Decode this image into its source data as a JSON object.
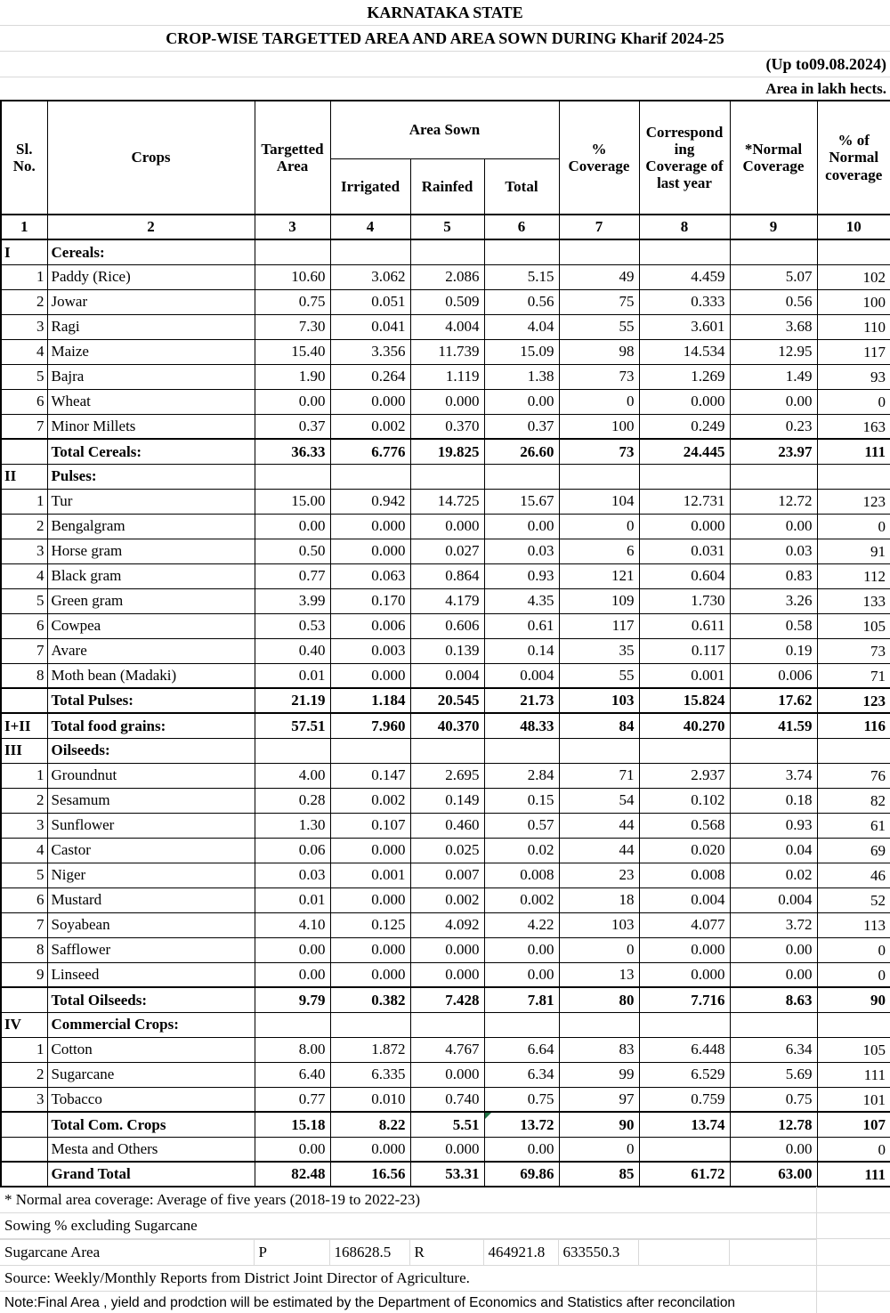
{
  "titles": {
    "state": "KARNATAKA STATE",
    "report": "CROP-WISE TARGETTED AREA AND AREA SOWN DURING Kharif 2024-25",
    "as_on": "(Up to09.08.2024)",
    "unit": "Area in lakh hects."
  },
  "table": {
    "header": {
      "sl": "Sl.\nNo.",
      "crops": "Crops",
      "targetted": "Targetted\nArea",
      "area_sown": "Area Sown",
      "irrigated": "Irrigated",
      "rainfed": "Rainfed",
      "total": "Total",
      "pct_coverage": "%\nCoverage",
      "corresponding": "Correspond\ning\nCoverage of\nlast year",
      "normal": "*Normal\nCoverage",
      "pct_normal": "% of\nNormal\ncoverage"
    },
    "col_numbers": [
      "1",
      "2",
      "3",
      "4",
      "5",
      "6",
      "7",
      "8",
      "9",
      "10"
    ],
    "rows": [
      {
        "type": "section",
        "sl": "I",
        "crop": "Cereals:",
        "values": [
          "",
          "",
          "",
          "",
          "",
          "",
          "",
          ""
        ]
      },
      {
        "type": "data",
        "sl": "1",
        "crop": "Paddy (Rice)",
        "values": [
          "10.60",
          "3.062",
          "2.086",
          "5.15",
          "49",
          "4.459",
          "5.07",
          "102"
        ]
      },
      {
        "type": "data",
        "sl": "2",
        "crop": "Jowar",
        "values": [
          "0.75",
          "0.051",
          "0.509",
          "0.56",
          "75",
          "0.333",
          "0.56",
          "100"
        ]
      },
      {
        "type": "data",
        "sl": "3",
        "crop": "Ragi",
        "values": [
          "7.30",
          "0.041",
          "4.004",
          "4.04",
          "55",
          "3.601",
          "3.68",
          "110"
        ]
      },
      {
        "type": "data",
        "sl": "4",
        "crop": "Maize",
        "values": [
          "15.40",
          "3.356",
          "11.739",
          "15.09",
          "98",
          "14.534",
          "12.95",
          "117"
        ]
      },
      {
        "type": "data",
        "sl": "5",
        "crop": "Bajra",
        "values": [
          "1.90",
          "0.264",
          "1.119",
          "1.38",
          "73",
          "1.269",
          "1.49",
          "93"
        ]
      },
      {
        "type": "data",
        "sl": "6",
        "crop": "Wheat",
        "values": [
          "0.00",
          "0.000",
          "0.000",
          "0.00",
          "0",
          "0.000",
          "0.00",
          "0"
        ]
      },
      {
        "type": "data",
        "sl": "7",
        "crop": "Minor Millets",
        "values": [
          "0.37",
          "0.002",
          "0.370",
          "0.37",
          "100",
          "0.249",
          "0.23",
          "163"
        ]
      },
      {
        "type": "total",
        "sl": "",
        "crop": "Total Cereals:",
        "values": [
          "36.33",
          "6.776",
          "19.825",
          "26.60",
          "73",
          "24.445",
          "23.97",
          "111"
        ]
      },
      {
        "type": "section",
        "sl": "II",
        "crop": "Pulses:",
        "values": [
          "",
          "",
          "",
          "",
          "",
          "",
          "",
          ""
        ]
      },
      {
        "type": "data",
        "sl": "1",
        "crop": "Tur",
        "values": [
          "15.00",
          "0.942",
          "14.725",
          "15.67",
          "104",
          "12.731",
          "12.72",
          "123"
        ]
      },
      {
        "type": "data",
        "sl": "2",
        "crop": "Bengalgram",
        "values": [
          "0.00",
          "0.000",
          "0.000",
          "0.00",
          "0",
          "0.000",
          "0.00",
          "0"
        ]
      },
      {
        "type": "data",
        "sl": "3",
        "crop": "Horse gram",
        "values": [
          "0.50",
          "0.000",
          "0.027",
          "0.03",
          "6",
          "0.031",
          "0.03",
          "91"
        ]
      },
      {
        "type": "data",
        "sl": "4",
        "crop": "Black gram",
        "values": [
          "0.77",
          "0.063",
          "0.864",
          "0.93",
          "121",
          "0.604",
          "0.83",
          "112"
        ]
      },
      {
        "type": "data",
        "sl": "5",
        "crop": "Green gram",
        "values": [
          "3.99",
          "0.170",
          "4.179",
          "4.35",
          "109",
          "1.730",
          "3.26",
          "133"
        ]
      },
      {
        "type": "data",
        "sl": "6",
        "crop": "Cowpea",
        "values": [
          "0.53",
          "0.006",
          "0.606",
          "0.61",
          "117",
          "0.611",
          "0.58",
          "105"
        ]
      },
      {
        "type": "data",
        "sl": "7",
        "crop": "Avare",
        "values": [
          "0.40",
          "0.003",
          "0.139",
          "0.14",
          "35",
          "0.117",
          "0.19",
          "73"
        ]
      },
      {
        "type": "data",
        "sl": "8",
        "crop": "Moth bean (Madaki)",
        "values": [
          "0.01",
          "0.000",
          "0.004",
          "0.004",
          "55",
          "0.001",
          "0.006",
          "71"
        ]
      },
      {
        "type": "total",
        "sl": "",
        "crop": "Total Pulses:",
        "values": [
          "21.19",
          "1.184",
          "20.545",
          "21.73",
          "103",
          "15.824",
          "17.62",
          "123"
        ]
      },
      {
        "type": "total",
        "sl": "I+II",
        "crop": "Total food grains:",
        "values": [
          "57.51",
          "7.960",
          "40.370",
          "48.33",
          "84",
          "40.270",
          "41.59",
          "116"
        ]
      },
      {
        "type": "section",
        "sl": "III",
        "crop": "Oilseeds:",
        "values": [
          "",
          "",
          "",
          "",
          "",
          "",
          "",
          ""
        ]
      },
      {
        "type": "data",
        "sl": "1",
        "crop": "Groundnut",
        "values": [
          "4.00",
          "0.147",
          "2.695",
          "2.84",
          "71",
          "2.937",
          "3.74",
          "76"
        ]
      },
      {
        "type": "data",
        "sl": "2",
        "crop": "Sesamum",
        "values": [
          "0.28",
          "0.002",
          "0.149",
          "0.15",
          "54",
          "0.102",
          "0.18",
          "82"
        ]
      },
      {
        "type": "data",
        "sl": "3",
        "crop": "Sunflower",
        "values": [
          "1.30",
          "0.107",
          "0.460",
          "0.57",
          "44",
          "0.568",
          "0.93",
          "61"
        ]
      },
      {
        "type": "data",
        "sl": "4",
        "crop": "Castor",
        "values": [
          "0.06",
          "0.000",
          "0.025",
          "0.02",
          "44",
          "0.020",
          "0.04",
          "69"
        ]
      },
      {
        "type": "data",
        "sl": "5",
        "crop": "Niger",
        "values": [
          "0.03",
          "0.001",
          "0.007",
          "0.008",
          "23",
          "0.008",
          "0.02",
          "46"
        ]
      },
      {
        "type": "data",
        "sl": "6",
        "crop": "Mustard",
        "values": [
          "0.01",
          "0.000",
          "0.002",
          "0.002",
          "18",
          "0.004",
          "0.004",
          "52"
        ]
      },
      {
        "type": "data",
        "sl": "7",
        "crop": "Soyabean",
        "values": [
          "4.10",
          "0.125",
          "4.092",
          "4.22",
          "103",
          "4.077",
          "3.72",
          "113"
        ]
      },
      {
        "type": "data",
        "sl": "8",
        "crop": "Safflower",
        "values": [
          "0.00",
          "0.000",
          "0.000",
          "0.00",
          "0",
          "0.000",
          "0.00",
          "0"
        ]
      },
      {
        "type": "data",
        "sl": "9",
        "crop": "Linseed",
        "values": [
          "0.00",
          "0.000",
          "0.000",
          "0.00",
          "13",
          "0.000",
          "0.00",
          "0"
        ]
      },
      {
        "type": "total",
        "sl": "",
        "crop": "Total Oilseeds:",
        "values": [
          "9.79",
          "0.382",
          "7.428",
          "7.81",
          "80",
          "7.716",
          "8.63",
          "90"
        ]
      },
      {
        "type": "section",
        "sl": "IV",
        "crop": "Commercial Crops:",
        "values": [
          "",
          "",
          "",
          "",
          "",
          "",
          "",
          ""
        ]
      },
      {
        "type": "data",
        "sl": "1",
        "crop": "Cotton",
        "values": [
          "8.00",
          "1.872",
          "4.767",
          "6.64",
          "83",
          "6.448",
          "6.34",
          "105"
        ]
      },
      {
        "type": "data",
        "sl": "2",
        "crop": "Sugarcane",
        "values": [
          "6.40",
          "6.335",
          "0.000",
          "6.34",
          "99",
          "6.529",
          "5.69",
          "111"
        ]
      },
      {
        "type": "data",
        "sl": "3",
        "crop": "Tobacco",
        "values": [
          "0.77",
          "0.010",
          "0.740",
          "0.75",
          "97",
          "0.759",
          "0.75",
          "101"
        ]
      },
      {
        "type": "total",
        "sl": "",
        "crop": "Total Com. Crops",
        "values": [
          "15.18",
          "8.22",
          "5.51",
          "13.72",
          "90",
          "13.74",
          "12.78",
          "107"
        ],
        "marker_col": 3
      },
      {
        "type": "data",
        "sl": "",
        "crop": "Mesta and Others",
        "values": [
          "0.00",
          "0.000",
          "0.000",
          "0.00",
          "0",
          "",
          "0.00",
          "0"
        ]
      },
      {
        "type": "total",
        "sl": "",
        "crop": "Grand Total",
        "values": [
          "82.48",
          "16.56",
          "53.31",
          "69.86",
          "85",
          "61.72",
          "63.00",
          "111"
        ]
      }
    ]
  },
  "footer": {
    "normal_note": "* Normal area coverage: Average of five years (2018-19 to 2022-23)",
    "sowing_note": "Sowing % excluding Sugarcane",
    "sugarcane": {
      "label": "Sugarcane Area",
      "cells": [
        "P",
        "168628.5",
        "R",
        "464921.8",
        "633550.3"
      ]
    },
    "source": "Source: Weekly/Monthly Reports from District Joint Director of Agriculture.",
    "final_note": "Note:Final Area , yield and prodction will be estimated by the Department of Economics and Statistics after reconcilation"
  },
  "colors": {
    "table_border": "#000000",
    "gridline": "#d9d9d9",
    "flag_marker_green": "#217346"
  }
}
